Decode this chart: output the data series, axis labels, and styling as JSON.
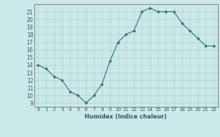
{
  "x": [
    0,
    1,
    2,
    3,
    4,
    5,
    6,
    7,
    8,
    9,
    10,
    11,
    12,
    13,
    14,
    15,
    16,
    17,
    18,
    19,
    20,
    21,
    22
  ],
  "y": [
    14,
    13.5,
    12.5,
    12,
    10.5,
    10,
    9,
    10,
    11.5,
    14.5,
    17,
    18,
    18.5,
    21,
    21.5,
    21,
    21,
    21,
    19.5,
    18.5,
    17.5,
    16.5,
    16.5
  ],
  "xlabel": "Humidex (Indice chaleur)",
  "xlim": [
    -0.5,
    22.5
  ],
  "ylim": [
    8.5,
    22
  ],
  "yticks": [
    9,
    10,
    11,
    12,
    13,
    14,
    15,
    16,
    17,
    18,
    19,
    20,
    21
  ],
  "xticks": [
    0,
    1,
    2,
    3,
    4,
    5,
    6,
    7,
    8,
    9,
    10,
    11,
    12,
    13,
    14,
    15,
    16,
    17,
    18,
    19,
    20,
    21,
    22
  ],
  "line_color": "#2d7d6e",
  "marker_color": "#2d7d6e",
  "bg_color": "#cce9e9",
  "grid_color": "#aacccc"
}
